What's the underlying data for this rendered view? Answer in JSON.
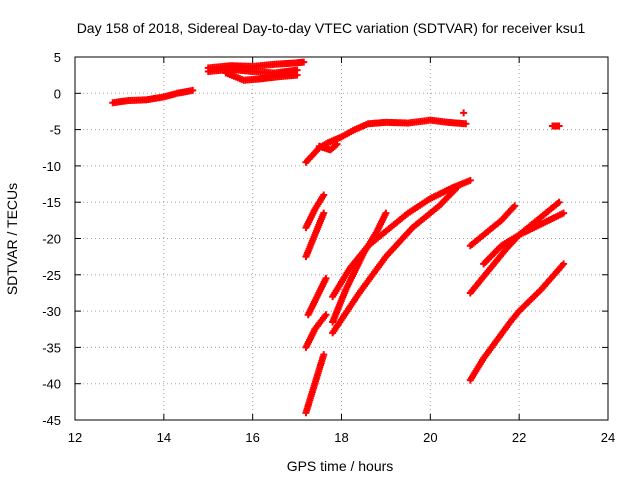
{
  "chart_data": {
    "type": "scatter",
    "title": "Day 158 of 2018, Sidereal Day-to-day VTEC variation (SDTVAR) for receiver ksu1",
    "xlabel": "GPS time / hours",
    "ylabel": "SDTVAR / TECUs",
    "xlim": [
      12,
      24
    ],
    "ylim": [
      -45,
      5
    ],
    "xticks": [
      12,
      14,
      16,
      18,
      20,
      22,
      24
    ],
    "yticks": [
      5,
      0,
      -5,
      -10,
      -15,
      -20,
      -25,
      -30,
      -35,
      -40,
      -45
    ],
    "grid": true,
    "marker": "plus",
    "color": "#ff0000",
    "series": [
      {
        "x": [
          12.85,
          13.2,
          13.6,
          14.0,
          14.3,
          14.65
        ],
        "y": [
          -1.3,
          -1.0,
          -0.9,
          -0.5,
          0.0,
          0.4
        ]
      },
      {
        "x": [
          15.0,
          15.5,
          16.0,
          16.5,
          17.0,
          17.15
        ],
        "y": [
          3.5,
          3.8,
          3.7,
          4.0,
          4.2,
          4.3
        ]
      },
      {
        "x": [
          15.0,
          15.5,
          16.0,
          16.5,
          17.0
        ],
        "y": [
          3.0,
          3.3,
          3.0,
          2.8,
          3.2
        ]
      },
      {
        "x": [
          15.4,
          15.8,
          16.2,
          16.6,
          17.0
        ],
        "y": [
          2.8,
          1.8,
          2.0,
          2.3,
          2.5
        ]
      },
      {
        "x": [
          17.2,
          17.5,
          17.7,
          18.0,
          18.3,
          18.6,
          19.0,
          19.5,
          20.0,
          20.4,
          20.8
        ],
        "y": [
          -9.5,
          -7.5,
          -6.8,
          -6.0,
          -5.0,
          -4.2,
          -4.0,
          -4.1,
          -3.7,
          -4.0,
          -4.2
        ]
      },
      {
        "x": [
          17.5,
          17.75,
          17.9
        ],
        "y": [
          -7.3,
          -7.8,
          -7.0
        ]
      },
      {
        "x": [
          20.75
        ],
        "y": [
          -2.7
        ]
      },
      {
        "x": [
          22.75,
          22.9
        ],
        "y": [
          -4.5,
          -4.5
        ]
      },
      {
        "x": [
          17.2,
          17.4,
          17.6
        ],
        "y": [
          -18.5,
          -16.0,
          -14.0
        ]
      },
      {
        "x": [
          17.2,
          17.4,
          17.6
        ],
        "y": [
          -22.5,
          -19.5,
          -16.5
        ]
      },
      {
        "x": [
          17.25,
          17.45,
          17.65
        ],
        "y": [
          -30.5,
          -28.0,
          -25.5
        ]
      },
      {
        "x": [
          17.2,
          17.4,
          17.65
        ],
        "y": [
          -35.0,
          -32.5,
          -30.5
        ]
      },
      {
        "x": [
          17.2,
          17.4,
          17.6
        ],
        "y": [
          -44.0,
          -40.0,
          -36.0
        ]
      },
      {
        "x": [
          17.8,
          18.2,
          18.6,
          19.0,
          19.5,
          20.0,
          20.5,
          20.9
        ],
        "y": [
          -28.0,
          -24.0,
          -21.0,
          -19.0,
          -16.5,
          -14.5,
          -13.0,
          -12.0
        ]
      },
      {
        "x": [
          17.8,
          18.1,
          18.5,
          18.8,
          19.0
        ],
        "y": [
          -31.5,
          -27.0,
          -22.0,
          -19.0,
          -16.5
        ]
      },
      {
        "x": [
          17.8,
          18.4,
          19.0,
          19.6,
          20.2,
          20.6
        ],
        "y": [
          -33.0,
          -27.5,
          -22.5,
          -18.5,
          -15.5,
          -13.0
        ]
      },
      {
        "x": [
          20.9,
          21.3,
          21.6,
          21.9
        ],
        "y": [
          -21.0,
          -19.0,
          -17.5,
          -15.5
        ]
      },
      {
        "x": [
          20.9,
          21.3,
          21.7,
          22.0,
          22.5,
          22.9
        ],
        "y": [
          -27.5,
          -24.5,
          -21.5,
          -19.5,
          -17.0,
          -15.0
        ]
      },
      {
        "x": [
          21.2,
          21.6,
          22.0,
          22.5,
          23.0
        ],
        "y": [
          -23.5,
          -21.0,
          -19.5,
          -18.0,
          -16.5
        ]
      },
      {
        "x": [
          20.9,
          21.2,
          21.5,
          21.8,
          22.0,
          22.5,
          23.0
        ],
        "y": [
          -39.5,
          -36.5,
          -34.0,
          -31.5,
          -30.0,
          -27.0,
          -23.5
        ]
      }
    ]
  }
}
